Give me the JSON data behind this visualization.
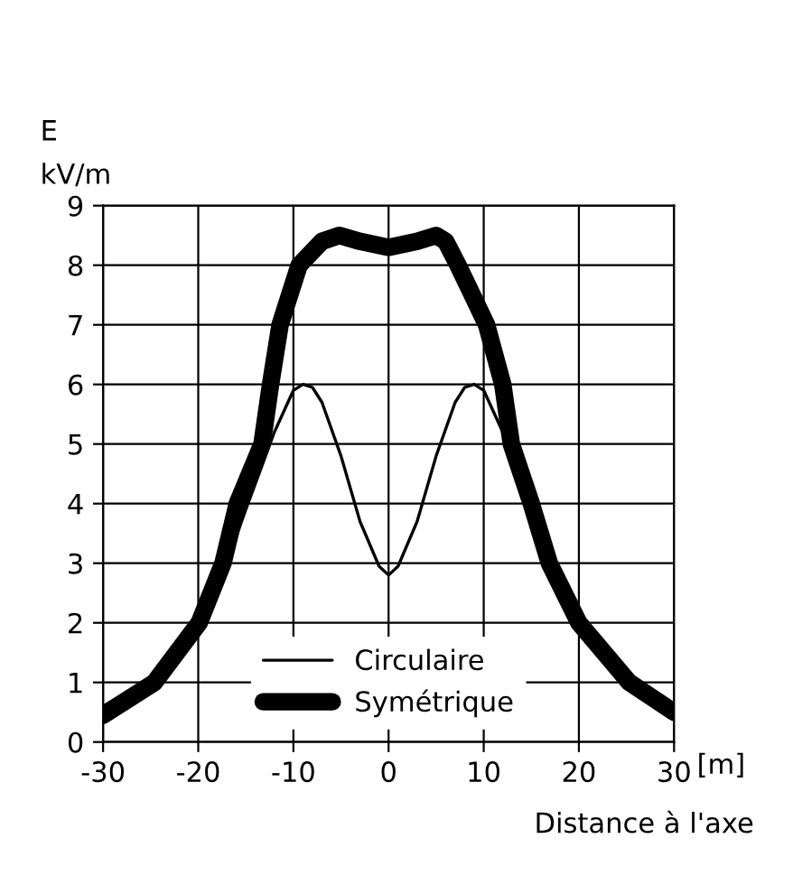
{
  "chart_data": {
    "type": "line",
    "ylabel": "E\nkV/m",
    "xlabel": "Distance à l'axe",
    "annotations": [
      "[m]"
    ],
    "xlim": [
      -30,
      30
    ],
    "xticks": [
      -30,
      -20,
      -10,
      0,
      10,
      20,
      30
    ],
    "ylim": [
      0,
      9
    ],
    "yticks": [
      0,
      1,
      2,
      3,
      4,
      5,
      6,
      7,
      8,
      9
    ],
    "grid": true,
    "legend": "bottom",
    "series": [
      {
        "name": "Circulaire",
        "color": "#000000",
        "x": [
          -30,
          -25,
          -20,
          -17,
          -15,
          -12,
          -10,
          -9,
          -8,
          -7,
          -5,
          -3,
          -1,
          0,
          1,
          3,
          5,
          7,
          8,
          9,
          10,
          12,
          15,
          17,
          20,
          25,
          30
        ],
        "values": [
          0.6,
          1.05,
          2.0,
          3.0,
          3.9,
          5.2,
          5.9,
          6.0,
          5.95,
          5.7,
          4.8,
          3.7,
          2.95,
          2.8,
          2.95,
          3.7,
          4.8,
          5.7,
          5.95,
          6.0,
          5.9,
          5.2,
          3.9,
          3.0,
          2.0,
          1.05,
          0.6
        ]
      },
      {
        "name": "Symétrique",
        "color": "#000000",
        "x": [
          -30,
          -24.6,
          -19.9,
          -17.4,
          -15.9,
          -13.3,
          -12.4,
          -11.4,
          -9.4,
          -7,
          -5.2,
          -3,
          0,
          3,
          5,
          6,
          7.3,
          10.3,
          12,
          12.9,
          15,
          16.9,
          20,
          25.3,
          30
        ],
        "values": [
          0.45,
          1.0,
          2.0,
          3.0,
          4.0,
          5.0,
          6.0,
          7.0,
          8.0,
          8.4,
          8.5,
          8.4,
          8.3,
          8.4,
          8.5,
          8.4,
          8.0,
          7.0,
          6.0,
          5.0,
          4.0,
          3.0,
          2.0,
          1.0,
          0.5
        ]
      }
    ]
  }
}
